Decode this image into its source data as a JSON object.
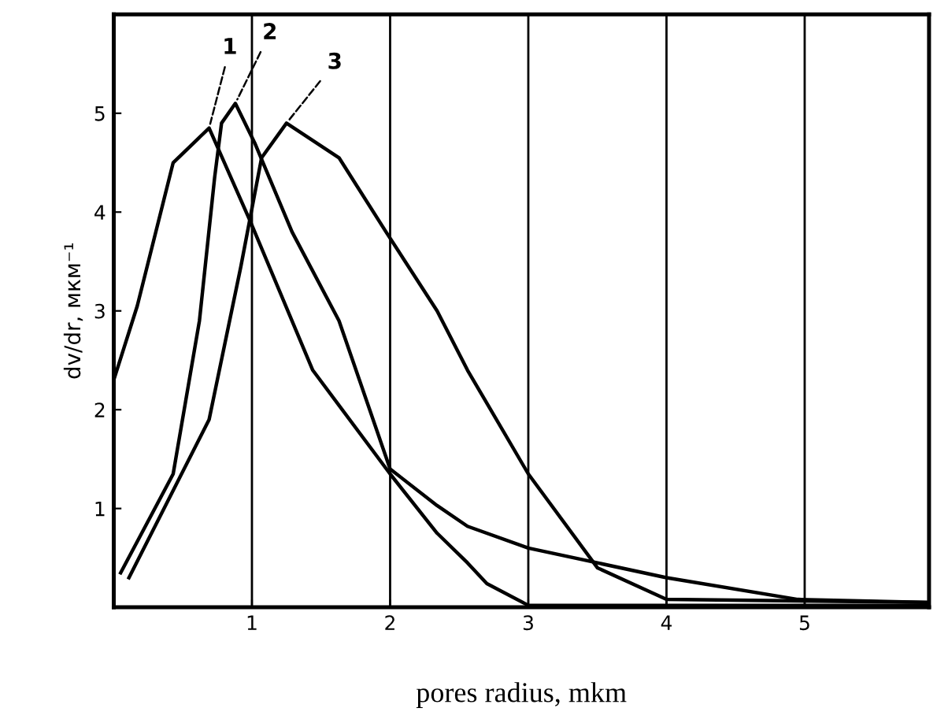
{
  "chart_data": {
    "type": "line",
    "xlabel": "pores radius, mkm",
    "ylabel": "dv/dr, мкм⁻¹",
    "xlim": [
      0,
      5.9
    ],
    "ylim": [
      0,
      6
    ],
    "xticks": [
      1,
      2,
      3,
      4,
      5
    ],
    "yticks": [
      1,
      2,
      3,
      4,
      5
    ],
    "grid": "x",
    "legend": false,
    "marker": "none",
    "line_style": "solid",
    "series": [
      {
        "name": "1",
        "color": "#000000",
        "x": [
          0,
          0.17,
          0.43,
          0.69,
          0.99,
          1.44,
          2.0,
          2.34,
          2.56,
          2.7,
          3.0,
          5.9
        ],
        "values": [
          2.3,
          3.05,
          4.5,
          4.85,
          3.9,
          2.4,
          1.35,
          0.75,
          0.45,
          0.24,
          0.02,
          0.02
        ]
      },
      {
        "name": "2",
        "color": "#000000",
        "x": [
          0.05,
          0.43,
          0.62,
          0.73,
          0.78,
          0.88,
          1.02,
          1.29,
          1.63,
          2.0,
          2.34,
          2.56,
          3.0,
          4.0,
          4.95,
          5.9
        ],
        "values": [
          0.35,
          1.35,
          2.9,
          4.35,
          4.9,
          5.1,
          4.7,
          3.8,
          2.9,
          1.4,
          1.03,
          0.82,
          0.6,
          0.3,
          0.08,
          0.05
        ]
      },
      {
        "name": "3",
        "color": "#000000",
        "x": [
          0.11,
          0.69,
          0.92,
          1.07,
          1.25,
          1.63,
          1.97,
          2.34,
          2.56,
          3.0,
          3.5,
          4.0,
          5.9
        ],
        "values": [
          0.3,
          1.9,
          3.45,
          4.55,
          4.9,
          4.55,
          3.8,
          3.0,
          2.4,
          1.35,
          0.4,
          0.08,
          0.05
        ]
      }
    ]
  }
}
